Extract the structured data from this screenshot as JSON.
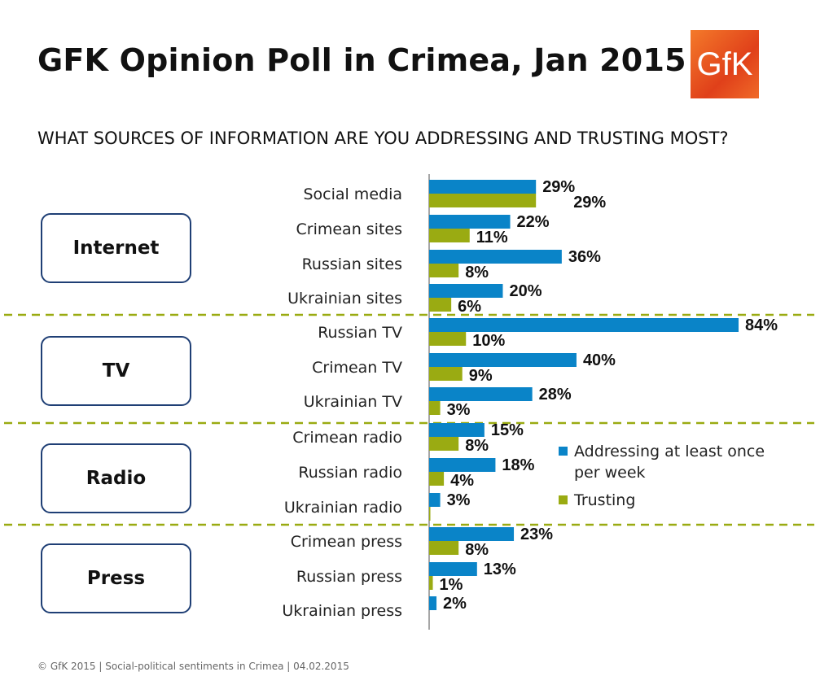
{
  "title": "GFK Opinion Poll in Crimea, Jan 2015",
  "subtitle": "WHAT SOURCES OF INFORMATION ARE YOU ADDRESSING AND TRUSTING MOST?",
  "logo_text": "GfK",
  "footer": "© GfK 2015 | Social-political sentiments in Crimea | 04.02.2015",
  "groups": [
    "Internet",
    "TV",
    "Radio",
    "Press"
  ],
  "colors": {
    "addressing": "#0a84c8",
    "trusting": "#9aab12",
    "divider": "#9aab12",
    "box": "#1f3f75"
  },
  "chart_data": {
    "type": "bar",
    "orientation": "horizontal",
    "title": "WHAT SOURCES OF INFORMATION ARE YOU ADDRESSING AND TRUSTING MOST?",
    "categories": [
      "Social media",
      "Crimean sites",
      "Russian sites",
      "Ukrainian sites",
      "Russian TV",
      "Crimean TV",
      "Ukrainian TV",
      "Crimean radio",
      "Russian radio",
      "Ukrainian radio",
      "Crimean press",
      "Russian press",
      "Ukrainian press"
    ],
    "groups": [
      {
        "name": "Internet",
        "count": 4
      },
      {
        "name": "TV",
        "count": 3
      },
      {
        "name": "Radio",
        "count": 3
      },
      {
        "name": "Press",
        "count": 3
      }
    ],
    "series": [
      {
        "name": "Addressing at least once per week",
        "values": [
          29,
          22,
          36,
          20,
          84,
          40,
          28,
          15,
          18,
          3,
          23,
          13,
          2
        ],
        "labels": [
          "29%",
          "22%",
          "36%",
          "20%",
          "84%",
          "40%",
          "28%",
          "15%",
          "18%",
          "3%",
          "23%",
          "13%",
          "2%"
        ]
      },
      {
        "name": "Trusting",
        "values": [
          29,
          11,
          8,
          6,
          10,
          9,
          3,
          8,
          4,
          0.3,
          8,
          1,
          0
        ],
        "labels": [
          "29%",
          "11%",
          "8%",
          "6%",
          "10%",
          "9%",
          "3%",
          "8%",
          "4%",
          "",
          "8%",
          "1%",
          ""
        ]
      }
    ],
    "legend": {
      "placement": "right",
      "lines": [
        "Addressing at least once",
        "per week",
        "Trusting"
      ]
    },
    "xlim": [
      0,
      100
    ],
    "grid": false
  }
}
